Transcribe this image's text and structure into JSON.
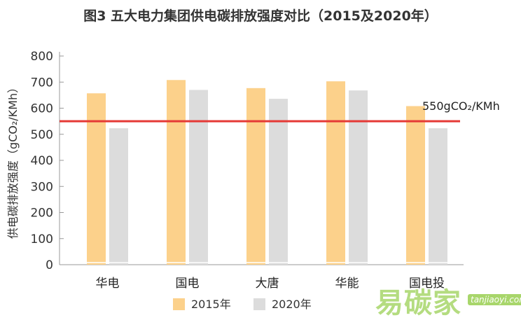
{
  "chart_data": {
    "type": "bar",
    "title": "图3 五大电力集团供电碳排放强度对比（2015及2020年）",
    "ylabel": "供电碳排放强度（gCO₂/KMh）",
    "xlabel": "",
    "categories": [
      "华电",
      "国电",
      "大唐",
      "华能",
      "国电投"
    ],
    "series": [
      {
        "name": "2015年",
        "color": "#fcd18b",
        "values": [
          657,
          708,
          677,
          703,
          608
        ]
      },
      {
        "name": "2020年",
        "color": "#dcdcdc",
        "values": [
          523,
          670,
          636,
          668,
          523
        ]
      }
    ],
    "yticks": [
      0,
      100,
      200,
      300,
      400,
      500,
      600,
      700,
      800
    ],
    "ylim": [
      0,
      800
    ],
    "reference_line": {
      "value": 550,
      "label": "550gCO₂/KMh",
      "color": "#e53935"
    },
    "legend_position": "bottom",
    "grid": false
  },
  "watermark": {
    "text": "易碳家",
    "url": "tanjiaoyi.com"
  }
}
